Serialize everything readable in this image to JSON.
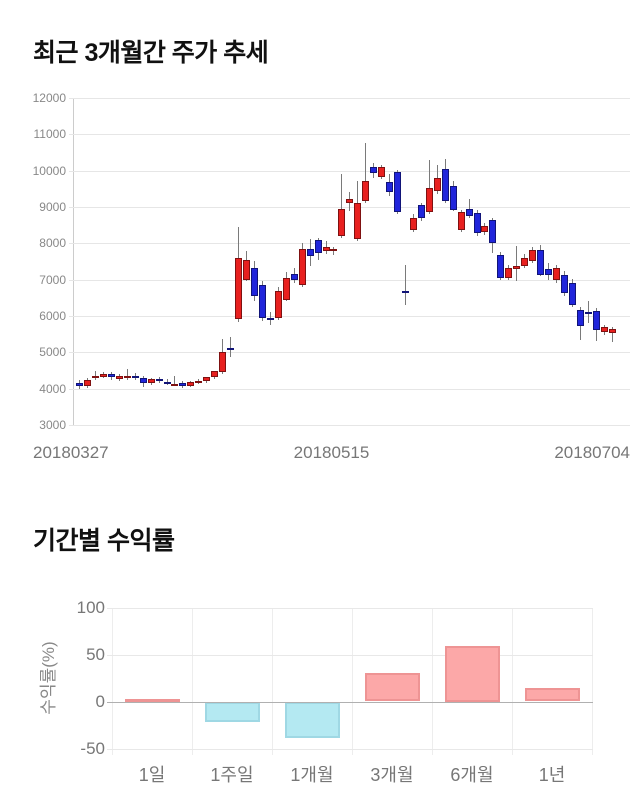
{
  "price_chart": {
    "title": "최근 3개월간 주가 추세"
  },
  "returns_chart": {
    "title": "기간별 수익률",
    "ylabel": "수익률(%)"
  },
  "chart_data": [
    {
      "type": "candlestick",
      "title": "최근 3개월간 주가 추세",
      "ylabel": "",
      "xlabel": "",
      "ylim": [
        3000,
        12000
      ],
      "y_ticks": [
        12000,
        11000,
        10000,
        9000,
        8000,
        7000,
        6000,
        5000,
        4000,
        3000
      ],
      "x_tick_labels": [
        "20180327",
        "20180515",
        "20180704"
      ],
      "grid": "horizontal-only",
      "up_color": "#e8201f",
      "down_color": "#2025db",
      "wick_color": "#7a7a7a",
      "candles_ohlc": [
        [
          4150,
          4250,
          4000,
          4060
        ],
        [
          4060,
          4300,
          4020,
          4250
        ],
        [
          4280,
          4500,
          4250,
          4340
        ],
        [
          4310,
          4450,
          4280,
          4400
        ],
        [
          4400,
          4450,
          4250,
          4310
        ],
        [
          4260,
          4400,
          4200,
          4350
        ],
        [
          4350,
          4550,
          4250,
          4360
        ],
        [
          4360,
          4420,
          4250,
          4290
        ],
        [
          4300,
          4350,
          4050,
          4160
        ],
        [
          4160,
          4300,
          4100,
          4280
        ],
        [
          4280,
          4330,
          4150,
          4210
        ],
        [
          4190,
          4260,
          4100,
          4150
        ],
        [
          4120,
          4360,
          4060,
          4130
        ],
        [
          4150,
          4220,
          4020,
          4080
        ],
        [
          4080,
          4220,
          4040,
          4190
        ],
        [
          4200,
          4260,
          4140,
          4210
        ],
        [
          4210,
          4330,
          4150,
          4320
        ],
        [
          4320,
          4500,
          4260,
          4480
        ],
        [
          4460,
          5380,
          4400,
          5010
        ],
        [
          5120,
          5420,
          4880,
          5100
        ],
        [
          5920,
          8450,
          5850,
          7600
        ],
        [
          7000,
          7800,
          6950,
          7550
        ],
        [
          7320,
          7520,
          6420,
          6540
        ],
        [
          6860,
          6960,
          5850,
          5940
        ],
        [
          5950,
          6100,
          5750,
          5900
        ],
        [
          5940,
          6800,
          5880,
          6700
        ],
        [
          6450,
          7200,
          6400,
          7050
        ],
        [
          7150,
          7320,
          6900,
          7000
        ],
        [
          6860,
          8000,
          6800,
          7840
        ],
        [
          7840,
          8130,
          7380,
          7640
        ],
        [
          8080,
          8160,
          7550,
          7730
        ],
        [
          7790,
          8060,
          7700,
          7890
        ],
        [
          7780,
          7910,
          7690,
          7850
        ],
        [
          8200,
          9900,
          8140,
          8960
        ],
        [
          9100,
          9420,
          8900,
          9230
        ],
        [
          8130,
          9720,
          8060,
          9100
        ],
        [
          9180,
          10770,
          9110,
          9730
        ],
        [
          10090,
          10210,
          9810,
          9940
        ],
        [
          9830,
          10160,
          9760,
          10090
        ],
        [
          9700,
          9910,
          9310,
          9420
        ],
        [
          9970,
          10010,
          8810,
          8860
        ],
        [
          6700,
          7400,
          6300,
          6680
        ],
        [
          8370,
          8810,
          8300,
          8690
        ],
        [
          9060,
          9120,
          8610,
          8690
        ],
        [
          8870,
          10300,
          8800,
          9520
        ],
        [
          9430,
          10170,
          9360,
          9800
        ],
        [
          10050,
          10310,
          9120,
          9150
        ],
        [
          9570,
          9710,
          8900,
          8920
        ],
        [
          8370,
          8910,
          8310,
          8870
        ],
        [
          8940,
          9210,
          8710,
          8760
        ],
        [
          8850,
          8910,
          8210,
          8280
        ],
        [
          8300,
          8560,
          8240,
          8480
        ],
        [
          8630,
          8710,
          7740,
          8020
        ],
        [
          7670,
          7760,
          7000,
          7050
        ],
        [
          7050,
          7410,
          6990,
          7330
        ],
        [
          7300,
          7930,
          6960,
          7380
        ],
        [
          7380,
          7710,
          7310,
          7610
        ],
        [
          7520,
          7910,
          7450,
          7820
        ],
        [
          7830,
          7950,
          7090,
          7140
        ],
        [
          7290,
          7460,
          7000,
          7120
        ],
        [
          6980,
          7410,
          6920,
          7320
        ],
        [
          7140,
          7240,
          6560,
          6630
        ],
        [
          6920,
          7010,
          6260,
          6300
        ],
        [
          6170,
          6260,
          5340,
          5730
        ],
        [
          6110,
          6410,
          5810,
          6090
        ],
        [
          6140,
          6210,
          5310,
          5610
        ],
        [
          5560,
          5760,
          5480,
          5700
        ],
        [
          5530,
          5710,
          5290,
          5640
        ]
      ]
    },
    {
      "type": "bar",
      "title": "기간별 수익률",
      "ylabel": "수익률(%)",
      "xlabel": "",
      "categories": [
        "1일",
        "1주일",
        "1개월",
        "3개월",
        "6개월",
        "1년"
      ],
      "values": [
        1,
        -22,
        -39,
        30,
        59,
        14
      ],
      "y_ticks": [
        100,
        50,
        0,
        -50
      ],
      "ylim": [
        -70,
        105
      ],
      "grid": "on",
      "legend": "none",
      "positive_fill": "#fca8a8",
      "positive_border": "#ee9494",
      "negative_fill": "#b4e9f2",
      "negative_border": "#9fd8e4"
    }
  ]
}
